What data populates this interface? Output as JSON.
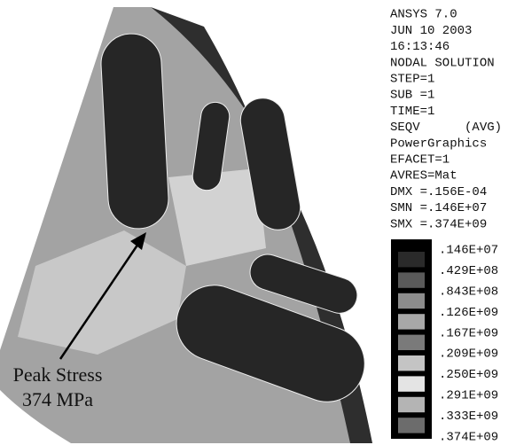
{
  "info_lines": [
    "ANSYS 7.0",
    "JUN 10 2003",
    "16:13:46",
    "NODAL SOLUTION",
    "STEP=1",
    "SUB =1",
    "TIME=1",
    "SEQV      (AVG)",
    "PowerGraphics",
    "EFACET=1",
    "AVRES=Mat",
    "DMX =.156E-04",
    "SMN =.146E+07",
    "SMX =.374E+09"
  ],
  "legend": {
    "labels": [
      ".146E+07",
      ".429E+08",
      ".843E+08",
      ".126E+09",
      ".167E+09",
      ".209E+09",
      ".250E+09",
      ".291E+09",
      ".333E+09",
      ".374E+09"
    ],
    "colors": [
      "#2a2a2a",
      "#5a5a5a",
      "#8c8c8c",
      "#a8a8a8",
      "#7a7a7a",
      "#c4c4c4",
      "#e4e4e4",
      "#b4b4b4",
      "#6c6c6c"
    ]
  },
  "annotation": {
    "line1": "Peak Stress",
    "line2": "374 MPa"
  }
}
